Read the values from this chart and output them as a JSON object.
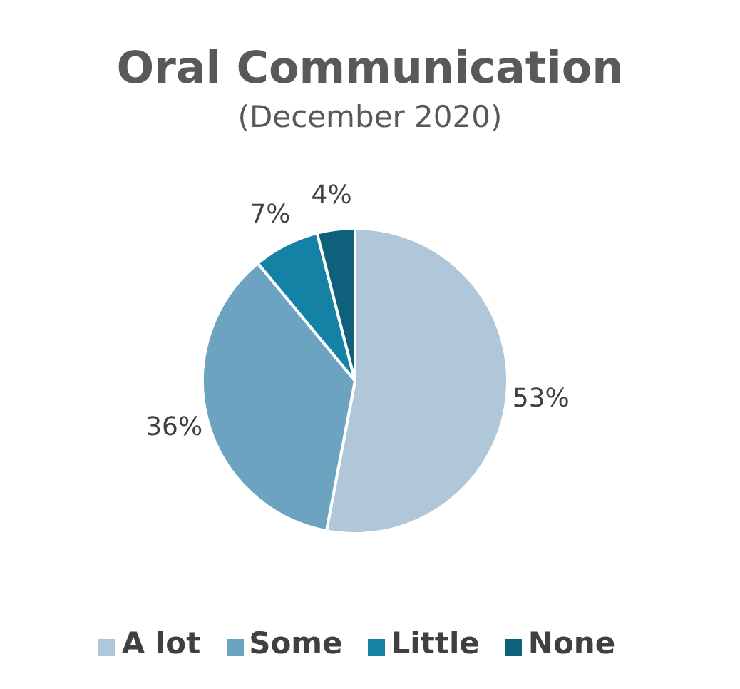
{
  "chart_data": {
    "type": "pie",
    "title": "Oral Communication",
    "subtitle": "(December 2020)",
    "categories": [
      "A lot",
      "Some",
      "Little",
      "None"
    ],
    "values": [
      53,
      36,
      7,
      4
    ],
    "colors": [
      "#afc7d8",
      "#6ca3c1",
      "#1382a4",
      "#0e607b"
    ],
    "value_labels": [
      "53%",
      "36%",
      "7%",
      "4%"
    ],
    "legend": "bottom"
  }
}
